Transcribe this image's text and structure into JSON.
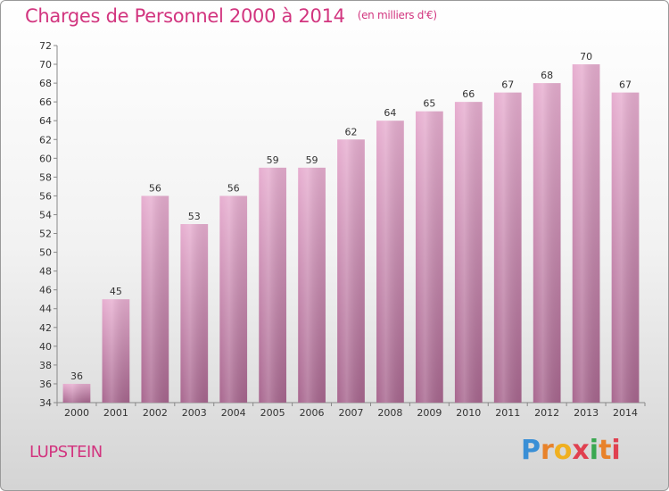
{
  "title": "Charges de Personnel 2000 à 2014",
  "unit": "(en milliers d'€)",
  "commune": "LUPSTEIN",
  "logo": {
    "letters": [
      "P",
      "r",
      "o",
      "x",
      "i",
      "t",
      "i"
    ],
    "colors": [
      "#3a8fd6",
      "#e8822a",
      "#f0b020",
      "#e04050",
      "#3aa850",
      "#e8822a",
      "#e04050"
    ]
  },
  "colors": {
    "bar": "#d98fb8",
    "title": "#d2357f"
  },
  "chart_data": {
    "type": "bar",
    "categories": [
      "2000",
      "2001",
      "2002",
      "2003",
      "2004",
      "2005",
      "2006",
      "2007",
      "2008",
      "2009",
      "2010",
      "2011",
      "2012",
      "2013",
      "2014"
    ],
    "values": [
      36,
      45,
      56,
      53,
      56,
      59,
      59,
      62,
      64,
      65,
      66,
      67,
      68,
      70,
      67
    ],
    "ylim": [
      34,
      72
    ],
    "yticks": [
      34,
      36,
      38,
      40,
      42,
      44,
      46,
      48,
      50,
      52,
      54,
      56,
      58,
      60,
      62,
      64,
      66,
      68,
      70,
      72
    ],
    "grid": false,
    "legend": "none"
  }
}
